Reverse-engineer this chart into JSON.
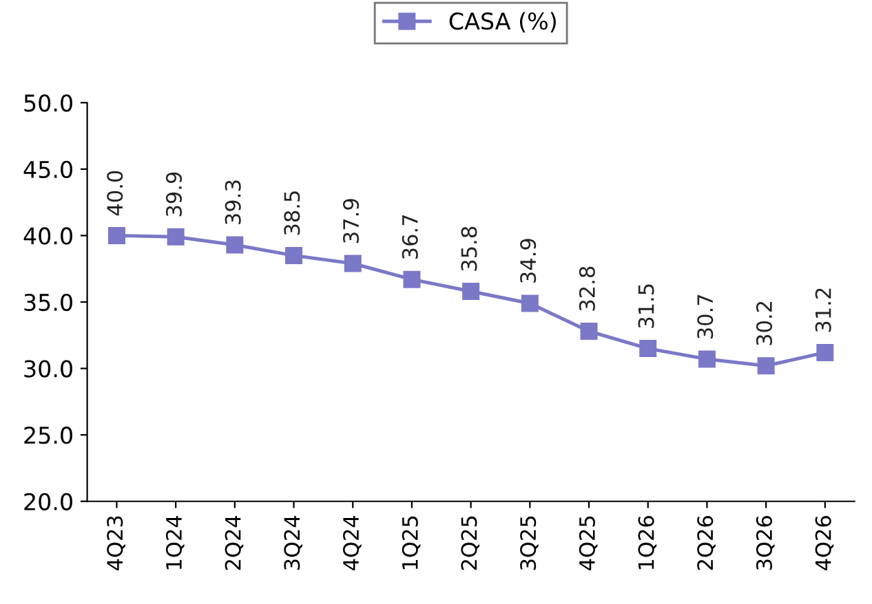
{
  "chart_data": {
    "type": "line",
    "categories": [
      "4Q23",
      "1Q24",
      "2Q24",
      "3Q24",
      "4Q24",
      "1Q25",
      "2Q25",
      "3Q25",
      "4Q25",
      "1Q26",
      "2Q26",
      "3Q26",
      "4Q26"
    ],
    "series": [
      {
        "name": "CASA (%)",
        "color": "#7b78c8",
        "values": [
          40.0,
          39.9,
          39.3,
          38.5,
          37.9,
          36.7,
          35.8,
          34.9,
          32.8,
          31.5,
          30.7,
          30.2,
          31.2
        ],
        "value_labels": [
          "40.0",
          "39.9",
          "39.3",
          "38.5",
          "37.9",
          "36.7",
          "35.8",
          "34.9",
          "32.8",
          "31.5",
          "30.7",
          "30.2",
          "31.2"
        ]
      }
    ],
    "ylim": [
      20,
      50
    ],
    "yticks": [
      {
        "value": 20,
        "label": "20.0"
      },
      {
        "value": 25,
        "label": "25.0"
      },
      {
        "value": 30,
        "label": "30.0"
      },
      {
        "value": 35,
        "label": "35.0"
      },
      {
        "value": 40,
        "label": "40.0"
      },
      {
        "value": 45,
        "label": "45.0"
      },
      {
        "value": 50,
        "label": "50.0"
      }
    ],
    "marker": "square",
    "line_style": "solid",
    "grid": false,
    "legend": "top"
  }
}
